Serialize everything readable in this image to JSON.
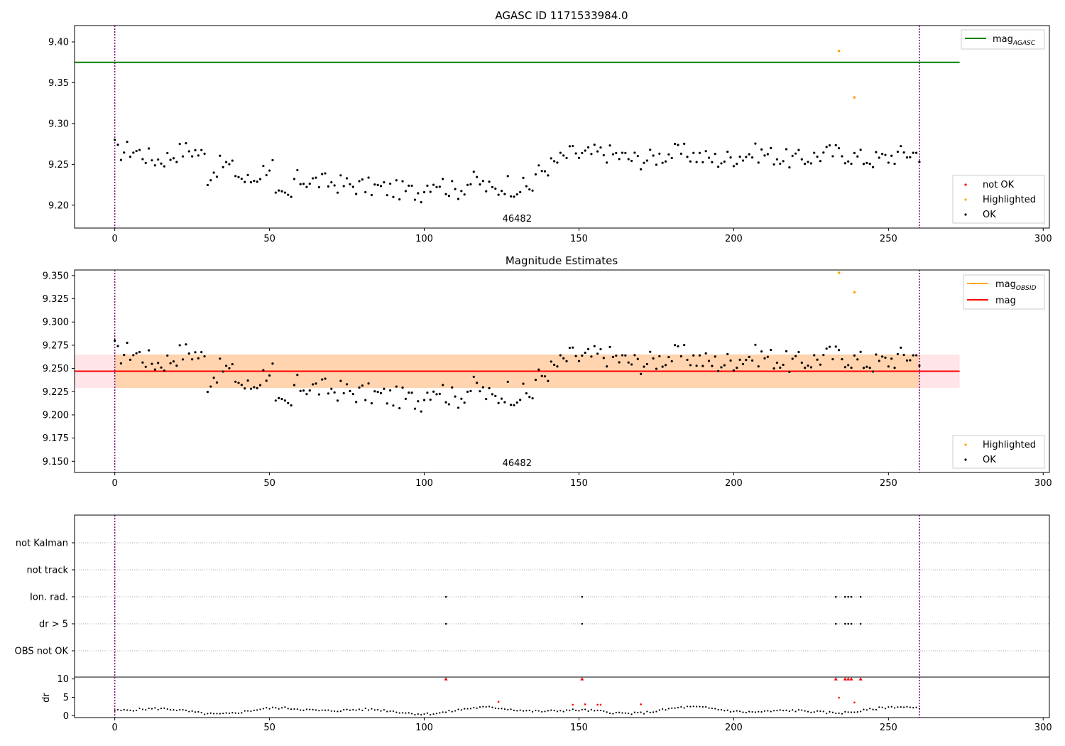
{
  "chart_data": [
    {
      "type": "scatter",
      "title": "AGASC ID 1171533984.0",
      "xlim": [
        -13,
        302
      ],
      "ylim": [
        9.172,
        9.42
      ],
      "xticks": [
        0,
        50,
        100,
        150,
        200,
        250,
        300
      ],
      "yticks": [
        9.2,
        9.25,
        9.3,
        9.35,
        9.4
      ],
      "ytick_labels": [
        "9.20",
        "9.25",
        "9.30",
        "9.35",
        "9.40"
      ],
      "obsid_label": "46482",
      "obsid_label_x": 130,
      "vlines": [
        0,
        260
      ],
      "hline": {
        "name": "mag_AGASC",
        "value": 9.375,
        "x_start": -13,
        "x_end": 273,
        "color": "#008000"
      },
      "line_legend": [
        {
          "label": "mag",
          "sub": "AGASC",
          "color": "#008000"
        }
      ],
      "point_legend": [
        {
          "label": "not OK",
          "color": "#ff0000"
        },
        {
          "label": "Highlighted",
          "color": "#ffa500"
        },
        {
          "label": "OK",
          "color": "#000000"
        }
      ],
      "highlighted": [
        [
          234,
          9.389
        ],
        [
          239,
          9.332
        ]
      ]
    },
    {
      "type": "scatter",
      "title": "Magnitude Estimates",
      "xlim": [
        -13,
        302
      ],
      "ylim": [
        9.138,
        9.356
      ],
      "xticks": [
        0,
        50,
        100,
        150,
        200,
        250,
        300
      ],
      "yticks": [
        9.15,
        9.175,
        9.2,
        9.225,
        9.25,
        9.275,
        9.3,
        9.325,
        9.35
      ],
      "ytick_labels": [
        "9.150",
        "9.175",
        "9.200",
        "9.225",
        "9.250",
        "9.275",
        "9.300",
        "9.325",
        "9.350"
      ],
      "obsid_label": "46482",
      "obsid_label_x": 130,
      "vlines": [
        0,
        260
      ],
      "mag": {
        "value": 9.247,
        "low": 9.229,
        "high": 9.265,
        "x_start": -13,
        "x_end": 273,
        "color": "#ff0000"
      },
      "obsid_band": {
        "low": 9.229,
        "high": 9.265,
        "x_start": 0,
        "x_end": 260,
        "color": "#ffa500"
      },
      "line_legend": [
        {
          "label": "mag",
          "sub": "OBSID",
          "color": "#ffa500"
        },
        {
          "label": "mag",
          "sub": "",
          "color": "#ff0000"
        }
      ],
      "point_legend": [
        {
          "label": "Highlighted",
          "color": "#ffa500"
        },
        {
          "label": "OK",
          "color": "#000000"
        }
      ],
      "highlighted": [
        [
          234,
          9.353
        ],
        [
          239,
          9.332
        ]
      ]
    },
    {
      "type": "scatter",
      "xlim": [
        -13,
        302
      ],
      "flag_labels": [
        "not Kalman",
        "not track",
        "Ion. rad.",
        "dr > 5",
        "OBS not OK"
      ],
      "flag_points": {
        "Ion. rad.": [
          107,
          151,
          233,
          236,
          237,
          238,
          241
        ],
        "dr > 5": [
          107,
          151,
          233,
          236,
          237,
          238,
          241
        ]
      },
      "vlines": [
        0,
        260
      ]
    },
    {
      "type": "scatter",
      "xlim": [
        -13,
        302
      ],
      "ylim": [
        -0.5,
        10.5
      ],
      "yticks": [
        0,
        5,
        10
      ],
      "ytick_labels": [
        "0",
        "5",
        "10"
      ],
      "xticks": [
        0,
        50,
        100,
        150,
        200,
        250,
        300
      ],
      "ylabel": "dr",
      "clipped_points": [
        107,
        151,
        233,
        236,
        237,
        238,
        241
      ],
      "red_points": [
        [
          124,
          3.8
        ],
        [
          148,
          3.0
        ],
        [
          152,
          3.1
        ],
        [
          156,
          3.0
        ],
        [
          157,
          3.0
        ],
        [
          170,
          3.1
        ],
        [
          234,
          4.9
        ],
        [
          239,
          3.6
        ]
      ],
      "vlines": [
        0,
        260
      ]
    }
  ]
}
